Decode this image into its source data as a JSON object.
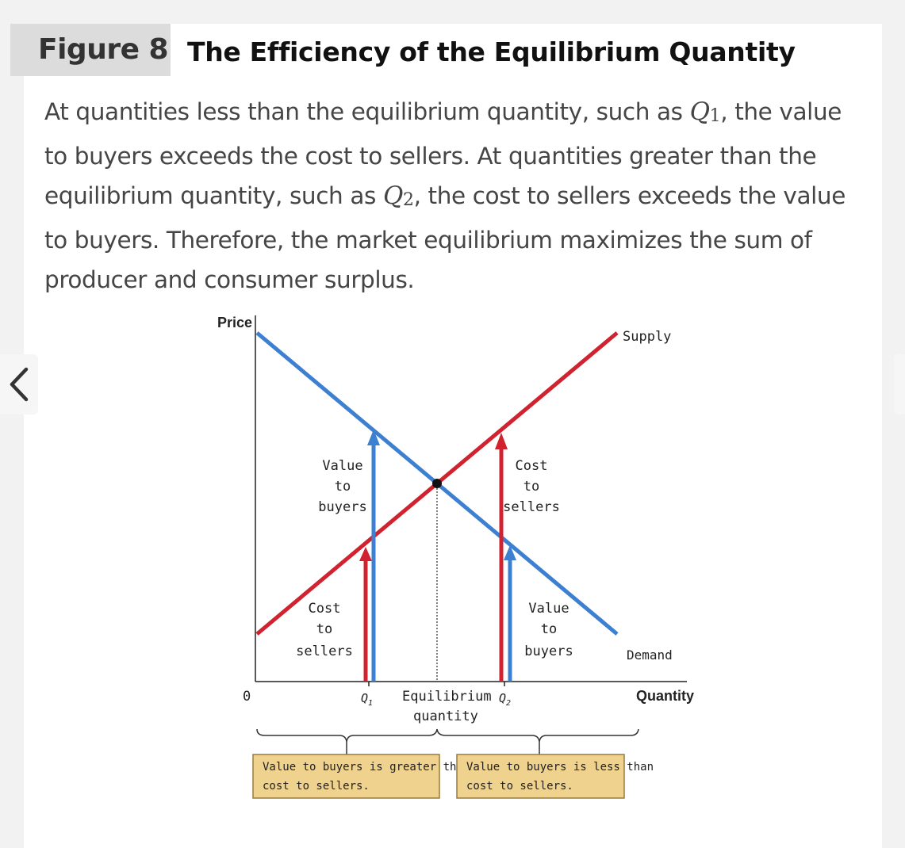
{
  "figure": {
    "tag": "Figure 8",
    "title": "The Efficiency of the Equilibrium Quantity"
  },
  "caption": {
    "p1": "At quantities less than the equilibrium quantity, such as ",
    "q1_var": "Q",
    "q1_sub": "1",
    "p2": ", the value to buyers exceeds the cost to sellers. At quantities greater than the equilibrium quantity, such as ",
    "q2_var": "Q",
    "q2_sub": "2",
    "p3": ", the cost to sellers exceeds the value to buyers. Therefore, the market equilibrium maximizes the sum of producer and consumer surplus."
  },
  "navigation": {
    "prev_icon": "chevron-left-icon",
    "next_icon": "chevron-right-icon"
  },
  "diagram": {
    "y_axis_label": "Price",
    "x_axis_label": "Quantity",
    "origin_label": "0",
    "supply_label": "Supply",
    "demand_label": "Demand",
    "q1_label": "Q",
    "q1_sub": "1",
    "q2_label": "Q",
    "q2_sub": "2",
    "eq_label_line1": "Equilibrium",
    "eq_label_line2": "quantity",
    "left_upper": [
      "Value",
      "to",
      "buyers"
    ],
    "left_lower": [
      "Cost",
      "to",
      "sellers"
    ],
    "right_upper": [
      "Cost",
      "to",
      "sellers"
    ],
    "right_lower": [
      "Value",
      "to",
      "buyers"
    ],
    "left_box": [
      "Value to buyers is greater than",
      "cost to sellers."
    ],
    "right_box": [
      "Value to buyers is less than",
      "cost to sellers."
    ],
    "colors": {
      "supply": "#d1232f",
      "demand": "#3d7fd0",
      "box_fill": "#efd28e",
      "box_border": "#9a7a3a"
    }
  }
}
